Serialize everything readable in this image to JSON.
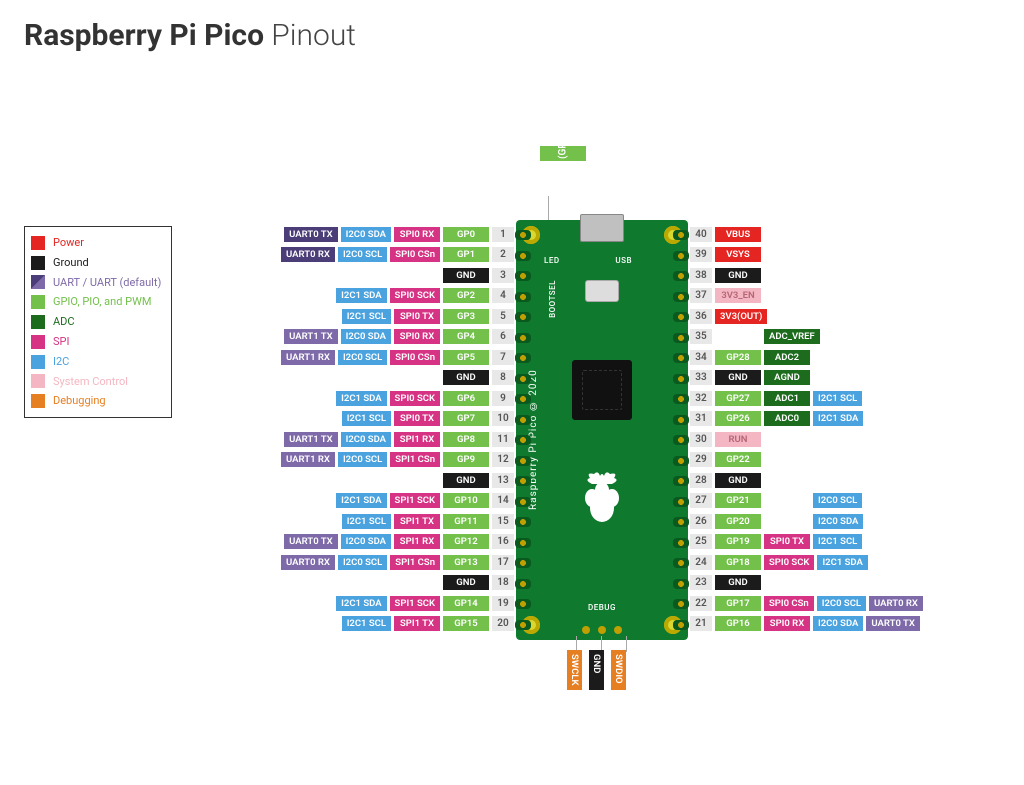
{
  "title": {
    "bold": "Raspberry Pi Pico",
    "thin": " Pinout"
  },
  "colors": {
    "power": "#e52521",
    "ground": "#1b1b1b",
    "uart": "#7e6aa8",
    "uart_default": "#4b3d78",
    "gpio": "#73c04b",
    "adc": "#1d6b1d",
    "spi": "#d63384",
    "i2c": "#4aa3df",
    "syscontrol": "#f4b6c2",
    "debug": "#e67e22",
    "pin_num_bg": "#e8e8e8",
    "board_bg": "#0f7a2e"
  },
  "legend": [
    {
      "color": "power",
      "label": "Power",
      "text_color": "#e52521"
    },
    {
      "color": "ground",
      "label": "Ground",
      "text_color": "#1b1b1b"
    },
    {
      "color": "uart",
      "label": "UART / UART (default)",
      "text_color": "#7e6aa8"
    },
    {
      "color": "gpio",
      "label": "GPIO, PIO, and PWM",
      "text_color": "#73c04b"
    },
    {
      "color": "adc",
      "label": "ADC",
      "text_color": "#1d6b1d"
    },
    {
      "color": "spi",
      "label": "SPI",
      "text_color": "#d63384"
    },
    {
      "color": "i2c",
      "label": "I2C",
      "text_color": "#4aa3df"
    },
    {
      "color": "syscontrol",
      "label": "System Control",
      "text_color": "#f4b6c2"
    },
    {
      "color": "debug",
      "label": "Debugging",
      "text_color": "#e67e22"
    }
  ],
  "top_led": {
    "label": "LED (GP25)",
    "color": "gpio"
  },
  "debug_bottom": [
    {
      "label": "SWCLK",
      "color": "debug"
    },
    {
      "label": "GND",
      "color": "ground"
    },
    {
      "label": "SWDIO",
      "color": "debug"
    }
  ],
  "board": {
    "side_text": "Raspberry Pi Pico © 2020",
    "labels": {
      "led": "LED",
      "usb": "USB",
      "bootsel": "BOOTSEL",
      "debug": "DEBUG"
    }
  },
  "left_pins": [
    {
      "num": 1,
      "tags": [
        {
          "t": "GP0",
          "c": "gpio"
        },
        {
          "t": "SPI0 RX",
          "c": "spi"
        },
        {
          "t": "I2C0 SDA",
          "c": "i2c"
        },
        {
          "t": "UART0 TX",
          "c": "uart_default"
        }
      ]
    },
    {
      "num": 2,
      "tags": [
        {
          "t": "GP1",
          "c": "gpio"
        },
        {
          "t": "SPI0 CSn",
          "c": "spi"
        },
        {
          "t": "I2C0 SCL",
          "c": "i2c"
        },
        {
          "t": "UART0 RX",
          "c": "uart_default"
        }
      ]
    },
    {
      "num": 3,
      "tags": [
        {
          "t": "GND",
          "c": "ground"
        }
      ]
    },
    {
      "num": 4,
      "tags": [
        {
          "t": "GP2",
          "c": "gpio"
        },
        {
          "t": "SPI0 SCK",
          "c": "spi"
        },
        {
          "t": "I2C1 SDA",
          "c": "i2c"
        }
      ]
    },
    {
      "num": 5,
      "tags": [
        {
          "t": "GP3",
          "c": "gpio"
        },
        {
          "t": "SPI0 TX",
          "c": "spi"
        },
        {
          "t": "I2C1 SCL",
          "c": "i2c"
        }
      ]
    },
    {
      "num": 6,
      "tags": [
        {
          "t": "GP4",
          "c": "gpio"
        },
        {
          "t": "SPI0 RX",
          "c": "spi"
        },
        {
          "t": "I2C0 SDA",
          "c": "i2c"
        },
        {
          "t": "UART1 TX",
          "c": "uart"
        }
      ]
    },
    {
      "num": 7,
      "tags": [
        {
          "t": "GP5",
          "c": "gpio"
        },
        {
          "t": "SPI0 CSn",
          "c": "spi"
        },
        {
          "t": "I2C0 SCL",
          "c": "i2c"
        },
        {
          "t": "UART1 RX",
          "c": "uart"
        }
      ]
    },
    {
      "num": 8,
      "tags": [
        {
          "t": "GND",
          "c": "ground"
        }
      ]
    },
    {
      "num": 9,
      "tags": [
        {
          "t": "GP6",
          "c": "gpio"
        },
        {
          "t": "SPI0 SCK",
          "c": "spi"
        },
        {
          "t": "I2C1 SDA",
          "c": "i2c"
        }
      ]
    },
    {
      "num": 10,
      "tags": [
        {
          "t": "GP7",
          "c": "gpio"
        },
        {
          "t": "SPI0 TX",
          "c": "spi"
        },
        {
          "t": "I2C1 SCL",
          "c": "i2c"
        }
      ]
    },
    {
      "num": 11,
      "tags": [
        {
          "t": "GP8",
          "c": "gpio"
        },
        {
          "t": "SPI1 RX",
          "c": "spi"
        },
        {
          "t": "I2C0 SDA",
          "c": "i2c"
        },
        {
          "t": "UART1 TX",
          "c": "uart"
        }
      ]
    },
    {
      "num": 12,
      "tags": [
        {
          "t": "GP9",
          "c": "gpio"
        },
        {
          "t": "SPI1 CSn",
          "c": "spi"
        },
        {
          "t": "I2C0 SCL",
          "c": "i2c"
        },
        {
          "t": "UART1 RX",
          "c": "uart"
        }
      ]
    },
    {
      "num": 13,
      "tags": [
        {
          "t": "GND",
          "c": "ground"
        }
      ]
    },
    {
      "num": 14,
      "tags": [
        {
          "t": "GP10",
          "c": "gpio"
        },
        {
          "t": "SPI1 SCK",
          "c": "spi"
        },
        {
          "t": "I2C1 SDA",
          "c": "i2c"
        }
      ]
    },
    {
      "num": 15,
      "tags": [
        {
          "t": "GP11",
          "c": "gpio"
        },
        {
          "t": "SPI1 TX",
          "c": "spi"
        },
        {
          "t": "I2C1 SCL",
          "c": "i2c"
        }
      ]
    },
    {
      "num": 16,
      "tags": [
        {
          "t": "GP12",
          "c": "gpio"
        },
        {
          "t": "SPI1 RX",
          "c": "spi"
        },
        {
          "t": "I2C0 SDA",
          "c": "i2c"
        },
        {
          "t": "UART0 TX",
          "c": "uart"
        }
      ]
    },
    {
      "num": 17,
      "tags": [
        {
          "t": "GP13",
          "c": "gpio"
        },
        {
          "t": "SPI1 CSn",
          "c": "spi"
        },
        {
          "t": "I2C0 SCL",
          "c": "i2c"
        },
        {
          "t": "UART0 RX",
          "c": "uart"
        }
      ]
    },
    {
      "num": 18,
      "tags": [
        {
          "t": "GND",
          "c": "ground"
        }
      ]
    },
    {
      "num": 19,
      "tags": [
        {
          "t": "GP14",
          "c": "gpio"
        },
        {
          "t": "SPI1 SCK",
          "c": "spi"
        },
        {
          "t": "I2C1 SDA",
          "c": "i2c"
        }
      ]
    },
    {
      "num": 20,
      "tags": [
        {
          "t": "GP15",
          "c": "gpio"
        },
        {
          "t": "SPI1 TX",
          "c": "spi"
        },
        {
          "t": "I2C1 SCL",
          "c": "i2c"
        }
      ]
    }
  ],
  "right_pins": [
    {
      "num": 40,
      "tags": [
        {
          "t": "VBUS",
          "c": "power"
        }
      ]
    },
    {
      "num": 39,
      "tags": [
        {
          "t": "VSYS",
          "c": "power"
        }
      ]
    },
    {
      "num": 38,
      "tags": [
        {
          "t": "GND",
          "c": "ground"
        }
      ]
    },
    {
      "num": 37,
      "tags": [
        {
          "t": "3V3_EN",
          "c": "syscontrol"
        }
      ]
    },
    {
      "num": 36,
      "tags": [
        {
          "t": "3V3(OUT)",
          "c": "power"
        }
      ]
    },
    {
      "num": 35,
      "tags": [
        {
          "t": "",
          "c": null
        },
        {
          "t": "ADC_VREF",
          "c": "adc"
        }
      ]
    },
    {
      "num": 34,
      "tags": [
        {
          "t": "GP28",
          "c": "gpio"
        },
        {
          "t": "ADC2",
          "c": "adc"
        }
      ]
    },
    {
      "num": 33,
      "tags": [
        {
          "t": "GND",
          "c": "ground"
        },
        {
          "t": "AGND",
          "c": "adc"
        }
      ]
    },
    {
      "num": 32,
      "tags": [
        {
          "t": "GP27",
          "c": "gpio"
        },
        {
          "t": "ADC1",
          "c": "adc"
        },
        {
          "t": "I2C1 SCL",
          "c": "i2c"
        }
      ]
    },
    {
      "num": 31,
      "tags": [
        {
          "t": "GP26",
          "c": "gpio"
        },
        {
          "t": "ADC0",
          "c": "adc"
        },
        {
          "t": "I2C1 SDA",
          "c": "i2c"
        }
      ]
    },
    {
      "num": 30,
      "tags": [
        {
          "t": "RUN",
          "c": "syscontrol"
        }
      ]
    },
    {
      "num": 29,
      "tags": [
        {
          "t": "GP22",
          "c": "gpio"
        }
      ]
    },
    {
      "num": 28,
      "tags": [
        {
          "t": "GND",
          "c": "ground"
        }
      ]
    },
    {
      "num": 27,
      "tags": [
        {
          "t": "GP21",
          "c": "gpio"
        },
        {
          "t": "",
          "c": null
        },
        {
          "t": "I2C0 SCL",
          "c": "i2c"
        }
      ]
    },
    {
      "num": 26,
      "tags": [
        {
          "t": "GP20",
          "c": "gpio"
        },
        {
          "t": "",
          "c": null
        },
        {
          "t": "I2C0 SDA",
          "c": "i2c"
        }
      ]
    },
    {
      "num": 25,
      "tags": [
        {
          "t": "GP19",
          "c": "gpio"
        },
        {
          "t": "SPI0 TX",
          "c": "spi"
        },
        {
          "t": "I2C1 SCL",
          "c": "i2c"
        }
      ]
    },
    {
      "num": 24,
      "tags": [
        {
          "t": "GP18",
          "c": "gpio"
        },
        {
          "t": "SPI0 SCK",
          "c": "spi"
        },
        {
          "t": "I2C1 SDA",
          "c": "i2c"
        }
      ]
    },
    {
      "num": 23,
      "tags": [
        {
          "t": "GND",
          "c": "ground"
        }
      ]
    },
    {
      "num": 22,
      "tags": [
        {
          "t": "GP17",
          "c": "gpio"
        },
        {
          "t": "SPI0 CSn",
          "c": "spi"
        },
        {
          "t": "I2C0 SCL",
          "c": "i2c"
        },
        {
          "t": "UART0 RX",
          "c": "uart"
        }
      ]
    },
    {
      "num": 21,
      "tags": [
        {
          "t": "GP16",
          "c": "gpio"
        },
        {
          "t": "SPI0 RX",
          "c": "spi"
        },
        {
          "t": "I2C0 SDA",
          "c": "i2c"
        },
        {
          "t": "UART0 TX",
          "c": "uart"
        }
      ]
    }
  ]
}
